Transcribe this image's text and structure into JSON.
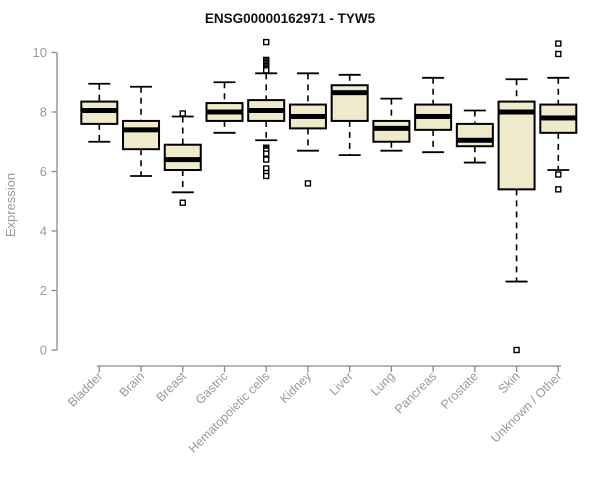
{
  "chart_data": {
    "type": "boxplot",
    "title": "ENSG00000162971 - TYW5",
    "ylabel": "Expression",
    "xlabel": "",
    "ylim": [
      0,
      10
    ],
    "yticks": [
      0,
      2,
      4,
      6,
      8,
      10
    ],
    "grid": false,
    "legend": "none",
    "box_fill": "#F0EACD",
    "box_stroke": "#000000",
    "axis_color": "#8C8C8C",
    "label_color": "#9A9A9A",
    "categories": [
      "Bladder",
      "Brain",
      "Breast",
      "Gastric",
      "Hematopoietic cells",
      "Kidney",
      "Liver",
      "Lung",
      "Pancreas",
      "Prostate",
      "Skin",
      "Unknown / Other"
    ],
    "series": [
      {
        "category": "Bladder",
        "low": 7.0,
        "q1": 7.6,
        "median": 8.05,
        "q3": 8.35,
        "high": 8.95,
        "outliers": []
      },
      {
        "category": "Brain",
        "low": 5.85,
        "q1": 6.75,
        "median": 7.4,
        "q3": 7.7,
        "high": 8.85,
        "outliers": []
      },
      {
        "category": "Breast",
        "low": 5.3,
        "q1": 6.05,
        "median": 6.4,
        "q3": 6.9,
        "high": 7.85,
        "outliers": [
          7.95,
          4.95
        ]
      },
      {
        "category": "Gastric",
        "low": 7.3,
        "q1": 7.7,
        "median": 8.0,
        "q3": 8.3,
        "high": 9.0,
        "outliers": []
      },
      {
        "category": "Hematopoietic cells",
        "low": 7.05,
        "q1": 7.7,
        "median": 8.05,
        "q3": 8.4,
        "high": 9.3,
        "outliers": [
          10.35,
          9.75,
          9.7,
          9.65,
          9.6,
          9.55,
          9.5,
          9.45,
          9.4,
          6.8,
          6.75,
          6.7,
          6.6,
          6.4,
          6.1,
          5.95,
          5.85
        ]
      },
      {
        "category": "Kidney",
        "low": 6.7,
        "q1": 7.45,
        "median": 7.85,
        "q3": 8.25,
        "high": 9.3,
        "outliers": [
          5.6
        ]
      },
      {
        "category": "Liver",
        "low": 6.55,
        "q1": 7.7,
        "median": 8.65,
        "q3": 8.9,
        "high": 9.25,
        "outliers": []
      },
      {
        "category": "Lung",
        "low": 6.7,
        "q1": 7.0,
        "median": 7.45,
        "q3": 7.7,
        "high": 8.45,
        "outliers": []
      },
      {
        "category": "Pancreas",
        "low": 6.65,
        "q1": 7.4,
        "median": 7.85,
        "q3": 8.25,
        "high": 9.15,
        "outliers": []
      },
      {
        "category": "Prostate",
        "low": 6.3,
        "q1": 6.85,
        "median": 7.05,
        "q3": 7.6,
        "high": 8.05,
        "outliers": []
      },
      {
        "category": "Skin",
        "low": 2.3,
        "q1": 5.4,
        "median": 8.0,
        "q3": 8.35,
        "high": 9.1,
        "outliers": [
          0.0
        ]
      },
      {
        "category": "Unknown / Other",
        "low": 6.05,
        "q1": 7.3,
        "median": 7.8,
        "q3": 8.25,
        "high": 9.15,
        "outliers": [
          10.3,
          9.95,
          5.9,
          5.4
        ]
      }
    ]
  }
}
